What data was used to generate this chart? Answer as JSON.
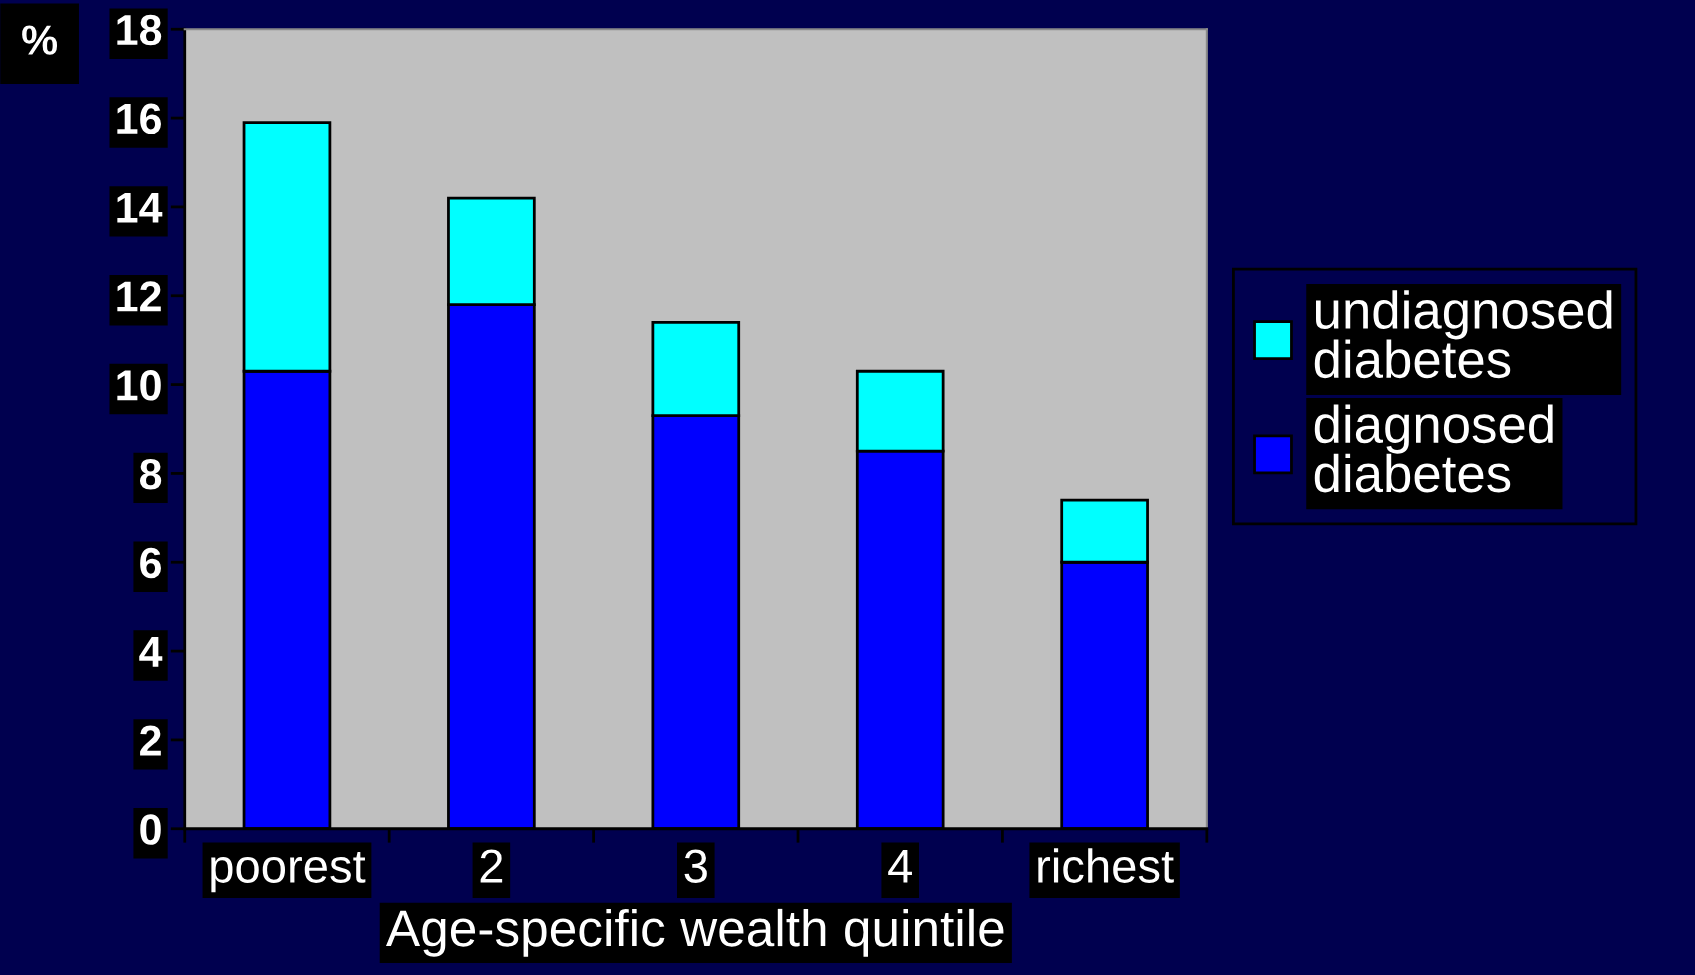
{
  "chart_data": {
    "type": "bar",
    "stacked": true,
    "categories": [
      "poorest",
      "2",
      "3",
      "4",
      "richest"
    ],
    "series": [
      {
        "name": "diagnosed diabetes",
        "color": "#0000ff",
        "values": [
          10.3,
          11.8,
          9.3,
          8.5,
          6.0
        ]
      },
      {
        "name": "undiagnosed diabetes",
        "color": "#00ffff",
        "values": [
          5.6,
          2.4,
          2.1,
          1.8,
          1.4
        ]
      }
    ],
    "xlabel": "Age-specific wealth quintile",
    "ylabel": "%",
    "ylim": [
      0,
      18
    ],
    "yticks": [
      0,
      2,
      4,
      6,
      8,
      10,
      12,
      14,
      16,
      18
    ],
    "legend": "right"
  }
}
